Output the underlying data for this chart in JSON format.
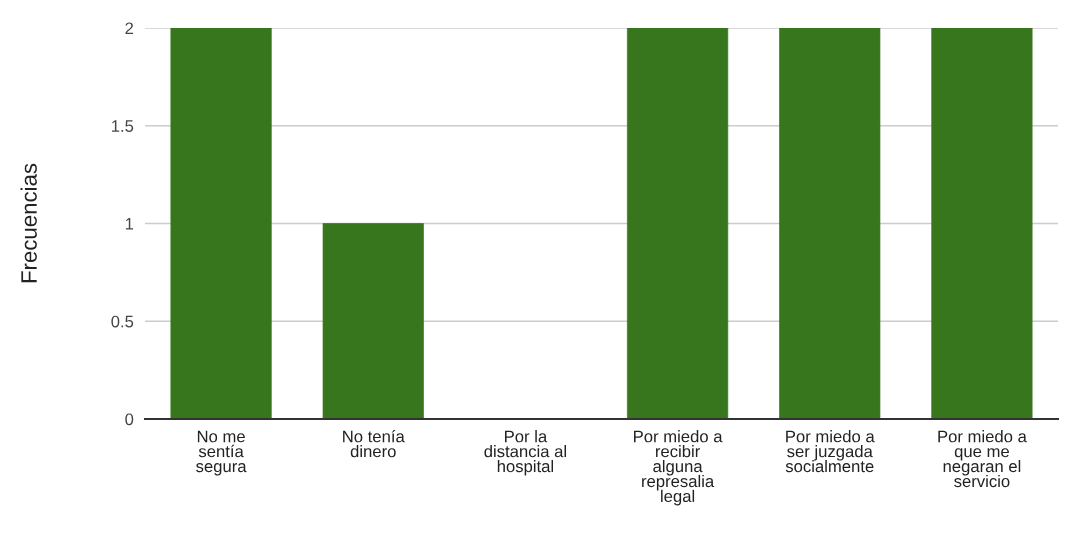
{
  "chart_data": {
    "type": "bar",
    "ylabel": "Frecuencias",
    "categories": [
      "No me\nsentía\nsegura",
      "No tenía\ndinero",
      "Por la\ndistancia al\nhospital",
      "Por miedo a\nrecibir\nalguna\nrepresalia\nlegal",
      "Por miedo a\nser juzgada\nsocialmente",
      "Por miedo a\nque me\nnegaran el\nservicio"
    ],
    "values": [
      2,
      1,
      0,
      2,
      2,
      2
    ],
    "color": "#38761d",
    "ylim": [
      0,
      2
    ],
    "yticks": [
      0,
      0.5,
      1,
      1.5,
      2
    ],
    "grid": "y"
  }
}
